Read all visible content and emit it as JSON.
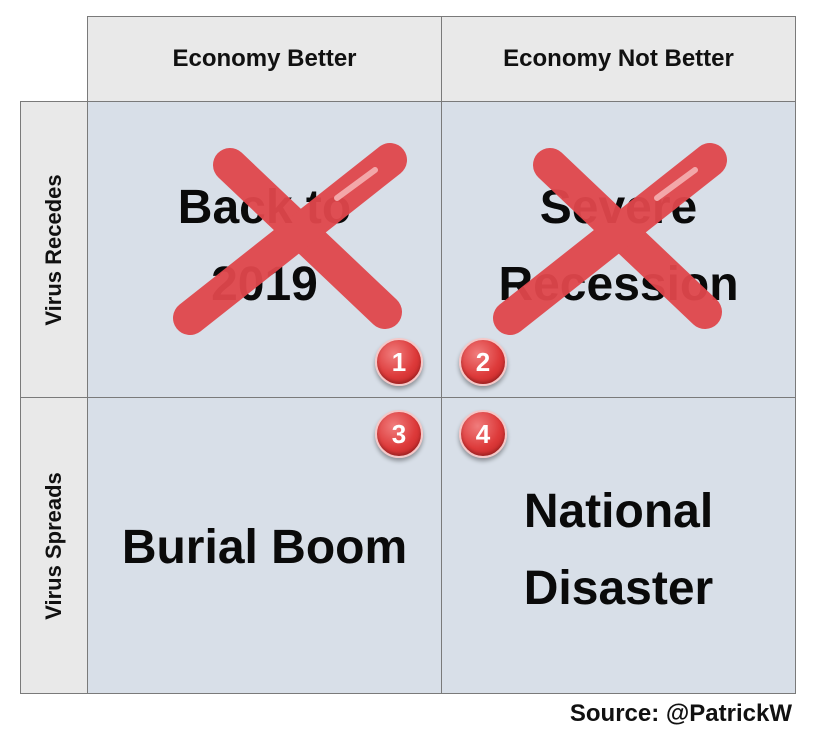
{
  "columns": [
    "Economy Better",
    "Economy Not Better"
  ],
  "rows": [
    "Virus Recedes",
    "Virus Spreads"
  ],
  "quadrants": [
    {
      "line1": "Back to",
      "line2": "2019",
      "crossed_out": true
    },
    {
      "line1": "Severe",
      "line2": "Recession",
      "crossed_out": true
    },
    {
      "line1": "Burial Boom",
      "line2": "",
      "crossed_out": false
    },
    {
      "line1": "National",
      "line2": "Disaster",
      "crossed_out": false
    }
  ],
  "badges": [
    "1",
    "2",
    "3",
    "4"
  ],
  "source": "Source: @PatrickW",
  "colors": {
    "cross": "#e0474c",
    "quadrant_fill": "#d8dfe8",
    "header_fill": "#e9e9e9",
    "badge": "#dd3a3a"
  },
  "icons": [
    "x-cross-icon",
    "number-badge"
  ]
}
